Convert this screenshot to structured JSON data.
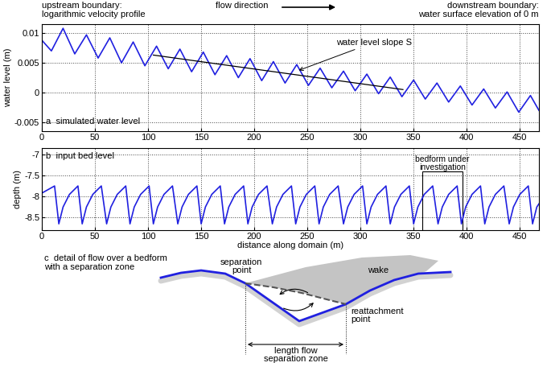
{
  "chart_data": [
    {
      "type": "line",
      "title": "a  simulated water level",
      "y_label": "water level (m)",
      "x": [
        0,
        9,
        20,
        31,
        42,
        53,
        64,
        75,
        86,
        97,
        108,
        119,
        130,
        141,
        152,
        163,
        174,
        185,
        196,
        207,
        218,
        229,
        240,
        251,
        262,
        273,
        284,
        295,
        306,
        317,
        328,
        339,
        350,
        361,
        372,
        383,
        394,
        405,
        416,
        427,
        438,
        449,
        460,
        468
      ],
      "values": [
        0.0088,
        0.007,
        0.0108,
        0.0065,
        0.0097,
        0.0058,
        0.0092,
        0.005,
        0.0085,
        0.0045,
        0.0078,
        0.004,
        0.0073,
        0.0035,
        0.0068,
        0.003,
        0.0062,
        0.0025,
        0.0057,
        0.002,
        0.0052,
        0.0016,
        0.0047,
        0.0012,
        0.0041,
        0.0008,
        0.0036,
        0.0003,
        0.0031,
        -0.0002,
        0.0026,
        -0.0007,
        0.0021,
        -0.0011,
        0.0016,
        -0.0016,
        0.0011,
        -0.0021,
        0.0006,
        -0.0026,
        0.0001,
        -0.0033,
        -0.0005,
        -0.003
      ],
      "color": "#2020e0",
      "xlim": [
        0,
        468
      ],
      "xticks": [
        0,
        50,
        100,
        150,
        200,
        250,
        300,
        350,
        400,
        450
      ],
      "ylim": [
        -0.0065,
        0.0115
      ],
      "yticks": [
        -0.005,
        0,
        0.005,
        0.01
      ],
      "grid": true,
      "slope_line": {
        "x": [
          105,
          340
        ],
        "y": [
          0.0063,
          0.0005
        ],
        "color": "#000000"
      },
      "annotation": {
        "text": "water level slope S",
        "x": 240,
        "y": 0.0036
      }
    },
    {
      "type": "line",
      "title": "b  input bed level",
      "y_label": "depth (m)",
      "x_label": "distance along domain (m)",
      "x": [
        0,
        12,
        16,
        20,
        26,
        34,
        38,
        42,
        48,
        56,
        61,
        65,
        71,
        79,
        83,
        87,
        93,
        101,
        105,
        109,
        115,
        123,
        128,
        132,
        138,
        146,
        150,
        154,
        160,
        168,
        172,
        176,
        182,
        190,
        194,
        198,
        204,
        212,
        217,
        221,
        227,
        235,
        239,
        243,
        249,
        257,
        261,
        265,
        271,
        279,
        284,
        288,
        294,
        302,
        306,
        310,
        316,
        324,
        328,
        332,
        338,
        346,
        350,
        354,
        360,
        368,
        373,
        377,
        383,
        391,
        395,
        399,
        405,
        413,
        417,
        421,
        427,
        435,
        440,
        444,
        450,
        458,
        462,
        466,
        470
      ],
      "values": [
        -7.92,
        -7.75,
        -8.65,
        -8.25,
        -7.95,
        -7.75,
        -8.65,
        -8.25,
        -7.95,
        -7.75,
        -8.65,
        -8.25,
        -7.95,
        -7.75,
        -8.65,
        -8.25,
        -7.95,
        -7.75,
        -8.65,
        -8.25,
        -7.95,
        -7.75,
        -8.65,
        -8.25,
        -7.95,
        -7.75,
        -8.65,
        -8.25,
        -7.95,
        -7.75,
        -8.65,
        -8.25,
        -7.95,
        -7.75,
        -8.65,
        -8.25,
        -7.95,
        -7.75,
        -8.65,
        -8.25,
        -7.95,
        -7.75,
        -8.65,
        -8.25,
        -7.95,
        -7.75,
        -8.65,
        -8.25,
        -7.95,
        -7.75,
        -8.65,
        -8.25,
        -7.95,
        -7.75,
        -8.65,
        -8.25,
        -7.95,
        -7.75,
        -8.65,
        -8.25,
        -7.95,
        -7.75,
        -8.65,
        -8.25,
        -7.95,
        -7.75,
        -8.65,
        -8.25,
        -7.95,
        -7.75,
        -8.65,
        -8.25,
        -7.95,
        -7.75,
        -8.65,
        -8.25,
        -7.95,
        -7.75,
        -8.65,
        -8.25,
        -7.95,
        -7.75,
        -8.65,
        -8.25,
        -8.1
      ],
      "color": "#2020e0",
      "xlim": [
        0,
        468
      ],
      "xticks": [
        0,
        50,
        100,
        150,
        200,
        250,
        300,
        350,
        400,
        450
      ],
      "ylim": [
        -8.8,
        -6.85
      ],
      "yticks": [
        -8.5,
        -8,
        -7.5,
        -7
      ],
      "grid": true,
      "box": {
        "text": "bedform under\ninvestigation",
        "x": [
          358,
          396
        ],
        "y": [
          -8.8,
          -7.4
        ]
      }
    }
  ],
  "figure_texts": {
    "upstream": "upstream boundary:\nlogarithmic velocity profile",
    "flow": "flow direction",
    "downstream": "downstream boundary:\nwater surface elevation of 0 m"
  },
  "diagram": {
    "title": "c  detail of flow over a bedform\nwith a separation zone",
    "separation_point": "separation\npoint",
    "wake": "wake",
    "reattachment_point": "reattachment\npoint",
    "length": "length flow\nseparation zone"
  }
}
